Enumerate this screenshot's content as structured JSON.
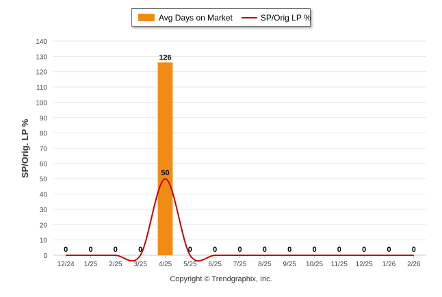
{
  "chart_data": {
    "type": "bar",
    "categories": [
      "12/24",
      "1/25",
      "2/25",
      "3/25",
      "4/25",
      "5/25",
      "6/25",
      "7/25",
      "8/25",
      "9/25",
      "10/25",
      "11/25",
      "12/25",
      "1/26",
      "2/26"
    ],
    "series": [
      {
        "name": "Avg Days on Market",
        "kind": "bar",
        "color": "#f08c14",
        "values": [
          0,
          0,
          0,
          0,
          126,
          0,
          0,
          0,
          0,
          0,
          0,
          0,
          0,
          0,
          0
        ]
      },
      {
        "name": "SP/Orig LP %",
        "kind": "line",
        "color": "#c00000",
        "values": [
          0,
          0,
          0,
          0,
          50,
          0,
          0,
          0,
          0,
          0,
          0,
          0,
          0,
          0,
          0
        ]
      }
    ],
    "data_labels": [
      "0",
      "0",
      "0",
      "0",
      "126",
      "0",
      "0",
      "0",
      "0",
      "0",
      "0",
      "0",
      "0",
      "0",
      "0"
    ],
    "line_label": "50",
    "ylabel": "SP/Orig. LP %",
    "xlabel": "",
    "ylim": [
      0,
      140
    ],
    "yticks": [
      0,
      10,
      20,
      30,
      40,
      50,
      60,
      70,
      80,
      90,
      100,
      110,
      120,
      130,
      140
    ],
    "grid": true,
    "legend_position": "top-center"
  },
  "legend": {
    "bar_label": "Avg Days on Market",
    "line_label": "SP/Orig LP %"
  },
  "copyright": "Copyright © Trendgraphix, Inc."
}
